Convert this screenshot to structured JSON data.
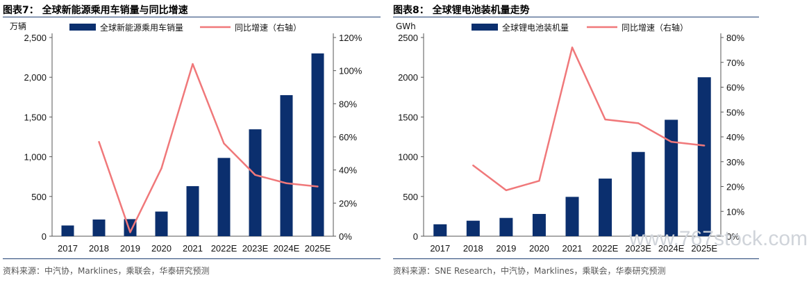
{
  "chart_data": [
    {
      "type": "bar",
      "title": "图表7：  全球新能源乘用车销量与同比增速",
      "unit_left": "万辆",
      "categories": [
        "2017",
        "2018",
        "2019",
        "2020",
        "2021",
        "2022E",
        "2023E",
        "2024E",
        "2025E"
      ],
      "series": [
        {
          "name": "全球新能源乘用车销量",
          "type": "bar",
          "axis": "left",
          "color": "#0b2f6e",
          "values": [
            135,
            210,
            215,
            310,
            630,
            985,
            1345,
            1775,
            2300
          ]
        },
        {
          "name": "同比增速（右轴）",
          "type": "line",
          "axis": "right",
          "color": "#f0787a",
          "values": [
            null,
            57,
            2.4,
            41,
            104,
            56,
            37,
            32,
            30
          ]
        }
      ],
      "yleft": {
        "min": 0,
        "max": 2500,
        "ticks": [
          0,
          500,
          1000,
          1500,
          2000,
          2500
        ],
        "tick_labels": [
          "0",
          "500",
          "1,000",
          "1,500",
          "2,000",
          "2,500"
        ]
      },
      "yright": {
        "min": 0,
        "max": 120,
        "ticks": [
          0,
          20,
          40,
          60,
          80,
          100,
          120
        ],
        "tick_labels": [
          "0%",
          "20%",
          "40%",
          "60%",
          "80%",
          "100%",
          "120%"
        ]
      },
      "legend": "top",
      "grid": false,
      "source": "资料来源：中汽协，Marklines，乘联会，华泰研究预测"
    },
    {
      "type": "bar",
      "title": "图表8：  全球锂电池装机量走势",
      "unit_left": "GWh",
      "categories": [
        "2017",
        "2018",
        "2019",
        "2020",
        "2021",
        "2022E",
        "2023E",
        "2024E",
        "2025E"
      ],
      "series": [
        {
          "name": "全球锂电池装机量",
          "type": "bar",
          "axis": "left",
          "color": "#0b2f6e",
          "values": [
            150,
            195,
            230,
            280,
            495,
            725,
            1060,
            1465,
            2000
          ]
        },
        {
          "name": "同比增速（右轴）",
          "type": "line",
          "axis": "right",
          "color": "#f0787a",
          "values": [
            null,
            28.5,
            18.5,
            22.3,
            76,
            47,
            45.5,
            38,
            36.5
          ]
        }
      ],
      "yleft": {
        "min": 0,
        "max": 2500,
        "ticks": [
          0,
          500,
          1000,
          1500,
          2000,
          2500
        ],
        "tick_labels": [
          "0",
          "500",
          "1000",
          "1500",
          "2000",
          "2500"
        ]
      },
      "yright": {
        "min": 0,
        "max": 80,
        "ticks": [
          0,
          10,
          20,
          30,
          40,
          50,
          60,
          70,
          80
        ],
        "tick_labels": [
          "0%",
          "10%",
          "20%",
          "30%",
          "40%",
          "50%",
          "60%",
          "70%",
          "80%"
        ]
      },
      "legend": "top",
      "grid": false,
      "source": "资料来源：SNE Research，中汽协，Marklines，乘联会，华泰研究预测"
    }
  ],
  "watermark": "www.767stock.com",
  "colors": {
    "bar": "#0b2f6e",
    "line": "#f0787a",
    "rule": "#1f3f73"
  }
}
